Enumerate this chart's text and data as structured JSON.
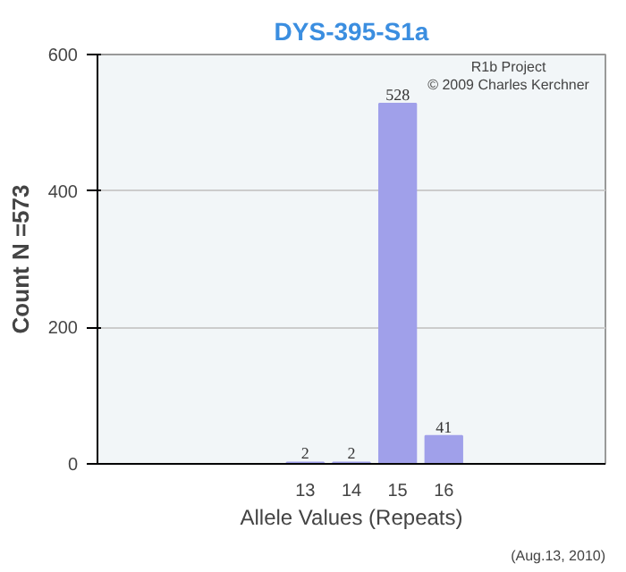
{
  "chart_data": {
    "type": "bar",
    "title": "DYS-395-S1a",
    "xlabel": "Allele Values (Repeats)",
    "ylabel": "Count N =573",
    "categories": [
      null,
      null,
      null,
      null,
      "13",
      "14",
      "15",
      "16",
      null,
      null,
      null
    ],
    "values": [
      null,
      null,
      null,
      null,
      2,
      2,
      528,
      41,
      null,
      null,
      null
    ],
    "color": "#a0a0ea",
    "ylim": [
      0,
      600
    ],
    "yticks": [
      0,
      200,
      400,
      600
    ],
    "grid": "y",
    "data_labels": true,
    "annotations": [
      "R1b Project",
      "© 2009 Charles Kerchner",
      "(Aug.13, 2010)"
    ]
  }
}
